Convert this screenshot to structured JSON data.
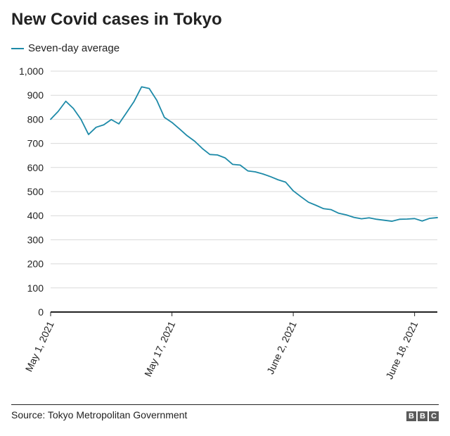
{
  "title": "New Covid cases in Tokyo",
  "legend": {
    "label": "Seven-day average"
  },
  "colors": {
    "line": "#1d8aa8",
    "grid": "#d9d9d9",
    "axis": "#222222",
    "text": "#222222"
  },
  "source": "Source: Tokyo Metropolitan Government",
  "logo": {
    "letters": [
      "B",
      "B",
      "C"
    ]
  },
  "chart_data": {
    "type": "line",
    "title": "New Covid cases in Tokyo",
    "xlabel": "",
    "ylabel": "",
    "ylim": [
      0,
      1000
    ],
    "grid": true,
    "legend_position": "top-left",
    "y_ticks": [
      0,
      100,
      200,
      300,
      400,
      500,
      600,
      700,
      800,
      900,
      1000
    ],
    "y_tick_labels": [
      "0",
      "100",
      "200",
      "300",
      "400",
      "500",
      "600",
      "700",
      "800",
      "900",
      "1,000"
    ],
    "x_ticks": [
      {
        "index": 0,
        "label": "May 1, 2021"
      },
      {
        "index": 16,
        "label": "May 17, 2021"
      },
      {
        "index": 32,
        "label": "June 2, 2021"
      },
      {
        "index": 48,
        "label": "June 18, 2021"
      }
    ],
    "x": [
      "2021-05-01",
      "2021-05-02",
      "2021-05-03",
      "2021-05-04",
      "2021-05-05",
      "2021-05-06",
      "2021-05-07",
      "2021-05-08",
      "2021-05-09",
      "2021-05-10",
      "2021-05-11",
      "2021-05-12",
      "2021-05-13",
      "2021-05-14",
      "2021-05-15",
      "2021-05-16",
      "2021-05-17",
      "2021-05-18",
      "2021-05-19",
      "2021-05-20",
      "2021-05-21",
      "2021-05-22",
      "2021-05-23",
      "2021-05-24",
      "2021-05-25",
      "2021-05-26",
      "2021-05-27",
      "2021-05-28",
      "2021-05-29",
      "2021-05-30",
      "2021-05-31",
      "2021-06-01",
      "2021-06-02",
      "2021-06-03",
      "2021-06-04",
      "2021-06-05",
      "2021-06-06",
      "2021-06-07",
      "2021-06-08",
      "2021-06-09",
      "2021-06-10",
      "2021-06-11",
      "2021-06-12",
      "2021-06-13",
      "2021-06-14",
      "2021-06-15",
      "2021-06-16",
      "2021-06-17",
      "2021-06-18",
      "2021-06-19",
      "2021-06-20",
      "2021-06-21"
    ],
    "series": [
      {
        "name": "Seven-day average",
        "values": [
          800,
          833,
          875,
          845,
          800,
          737,
          767,
          777,
          799,
          781,
          827,
          874,
          935,
          928,
          879,
          808,
          787,
          760,
          732,
          709,
          679,
          654,
          652,
          640,
          613,
          610,
          586,
          582,
          573,
          562,
          549,
          539,
          503,
          479,
          456,
          443,
          429,
          425,
          410,
          403,
          393,
          387,
          391,
          385,
          381,
          377,
          385,
          386,
          388,
          378,
          389,
          392
        ]
      }
    ]
  }
}
